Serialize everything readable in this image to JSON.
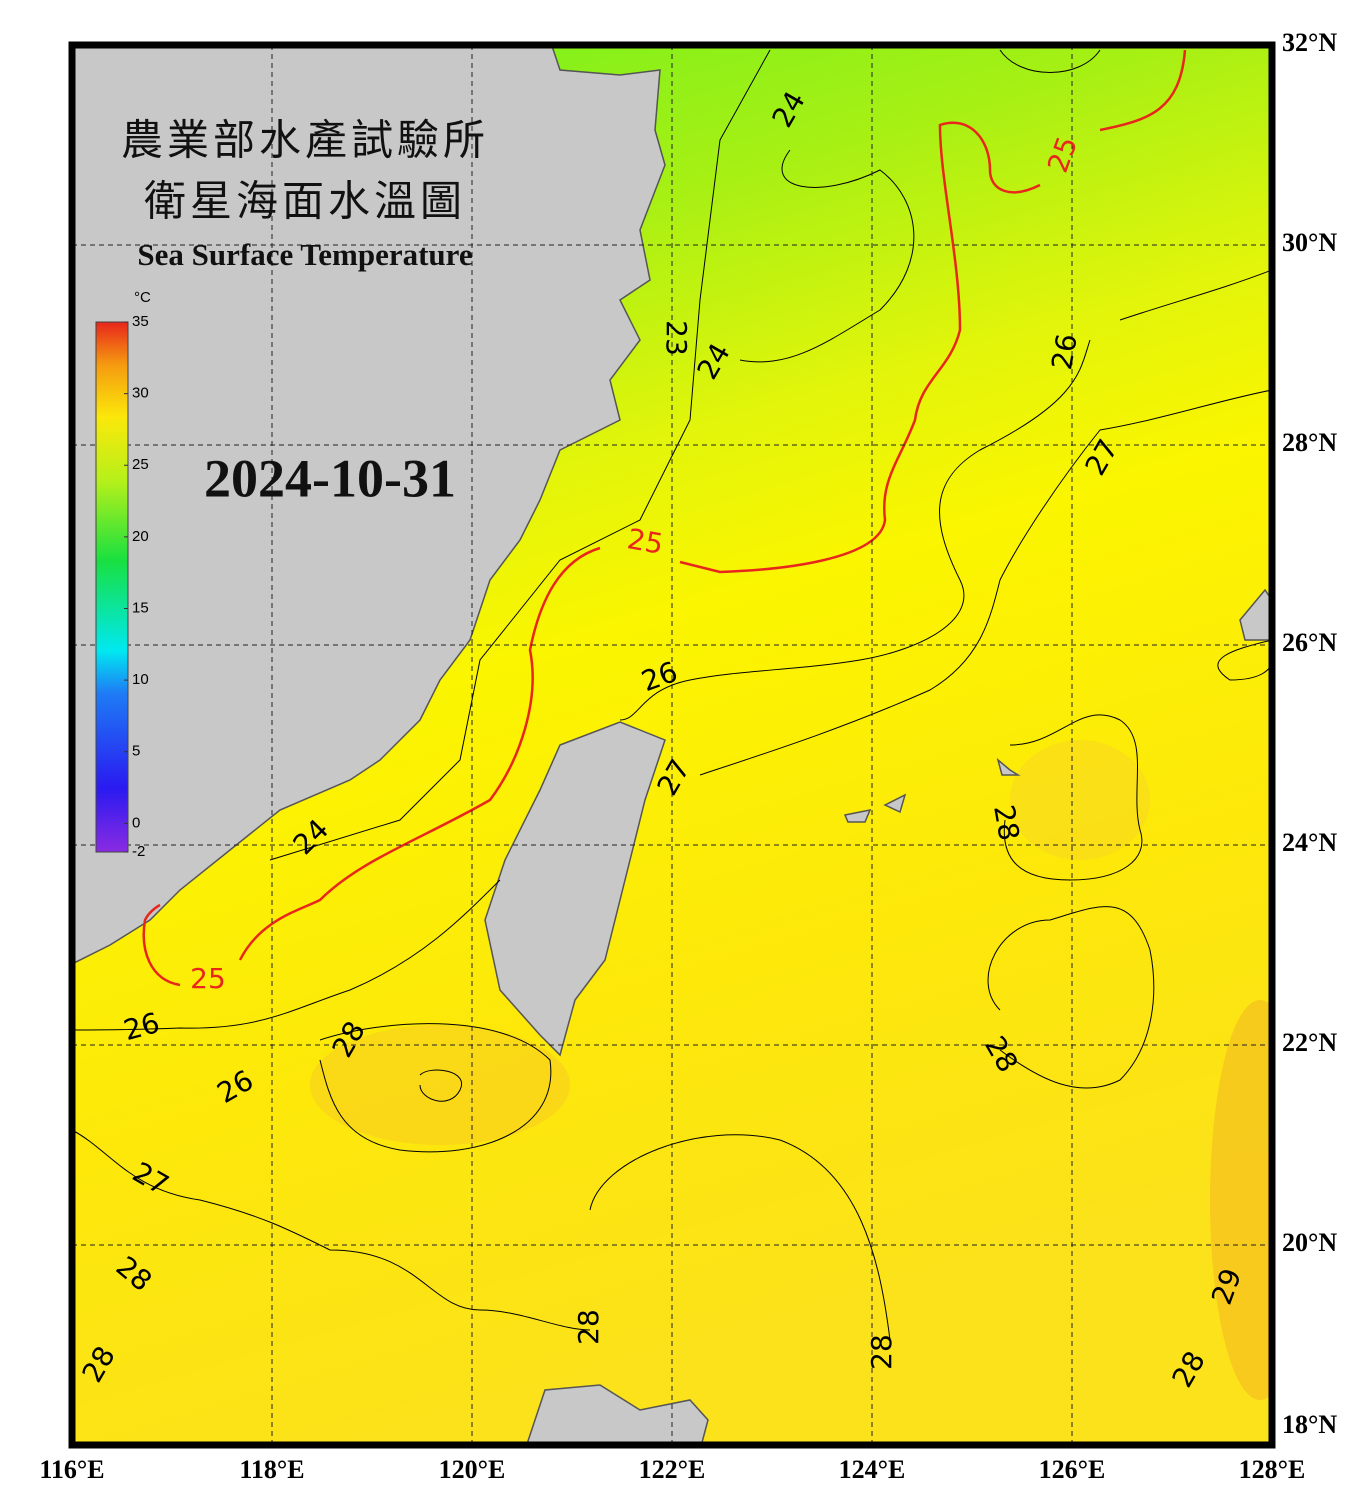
{
  "header": {
    "title_zh_1": "農業部水產試驗所",
    "title_zh_2": "衛星海面水溫圖",
    "title_en": "Sea Surface Temperature"
  },
  "date": "2024-10-31",
  "colorbar": {
    "unit": "°C",
    "range": [
      -2,
      35
    ],
    "ticks": [
      35,
      30,
      25,
      20,
      15,
      10,
      5,
      0,
      -2
    ]
  },
  "map": {
    "lon_range": [
      116,
      128
    ],
    "lat_range": [
      18,
      32
    ],
    "lon_ticks": [
      {
        "value": 116,
        "label": "116°E"
      },
      {
        "value": 118,
        "label": "118°E"
      },
      {
        "value": 120,
        "label": "120°E"
      },
      {
        "value": 122,
        "label": "122°E"
      },
      {
        "value": 124,
        "label": "124°E"
      },
      {
        "value": 126,
        "label": "126°E"
      },
      {
        "value": 128,
        "label": "128°E"
      }
    ],
    "lat_ticks": [
      {
        "value": 18,
        "label": "18°N"
      },
      {
        "value": 20,
        "label": "20°N"
      },
      {
        "value": 22,
        "label": "22°N"
      },
      {
        "value": 24,
        "label": "24°N"
      },
      {
        "value": 26,
        "label": "26°N"
      },
      {
        "value": 28,
        "label": "28°N"
      },
      {
        "value": 30,
        "label": "30°N"
      },
      {
        "value": 32,
        "label": "32°N"
      }
    ]
  },
  "contour_labels": [
    24,
    24,
    24,
    23,
    25,
    25,
    25,
    26,
    26,
    26,
    26,
    27,
    27,
    27,
    28,
    28,
    28,
    28,
    28,
    28,
    28,
    28,
    29
  ],
  "highlight_level": 25,
  "highlight_color": "#e8261c"
}
